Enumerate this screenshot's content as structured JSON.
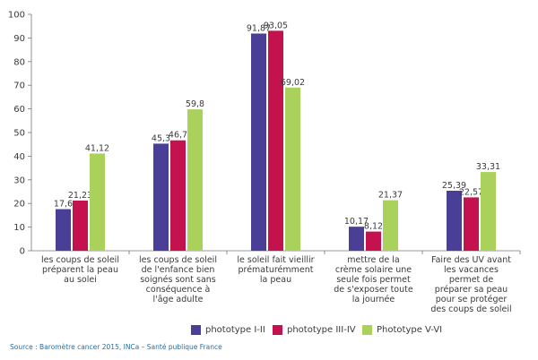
{
  "chart_data": {
    "type": "bar",
    "ylim": [
      0,
      100
    ],
    "yticks": [
      0,
      10,
      20,
      30,
      40,
      50,
      60,
      70,
      80,
      90,
      100
    ],
    "grid": false,
    "legend_position": "bottom",
    "categories": [
      [
        "les coups de soleil",
        "préparent la peau",
        "au solei"
      ],
      [
        "les coups de soleil",
        "de l'enfance bien",
        "soignés sont sans",
        "conséquence à",
        "l'âge adulte"
      ],
      [
        "le soleil fait vieillir",
        "prématurémment",
        "la peau"
      ],
      [
        "mettre de la",
        "crème solaire une",
        "seule fois permet",
        "de s'exposer toute",
        "la journée"
      ],
      [
        "Faire des UV avant",
        "les vacances",
        "permet de",
        "préparer sa peau",
        "pour se protéger",
        "des coups de soleil"
      ]
    ],
    "series": [
      {
        "name": "phototype I-II",
        "color": "#4a3f97",
        "values": [
          17.6,
          45.3,
          91.87,
          10.17,
          25.39
        ],
        "labels": [
          "17,6",
          "45,3",
          "91,87",
          "10,17",
          "25,39"
        ]
      },
      {
        "name": "phototype III-IV",
        "color": "#c4124f",
        "values": [
          21.23,
          46.7,
          93.05,
          8.12,
          22.57
        ],
        "labels": [
          "21,23",
          "46,7",
          "93,05",
          "8,12",
          "22,57"
        ]
      },
      {
        "name": "Phototype V-VI",
        "color": "#a9d15b",
        "values": [
          41.12,
          59.8,
          69.02,
          21.37,
          33.31
        ],
        "labels": [
          "41,12",
          "59,8",
          "69,02",
          "21,37",
          "33,31"
        ]
      }
    ]
  },
  "source": "Source : Baromètre cancer 2015, INCa – Santé publique France"
}
